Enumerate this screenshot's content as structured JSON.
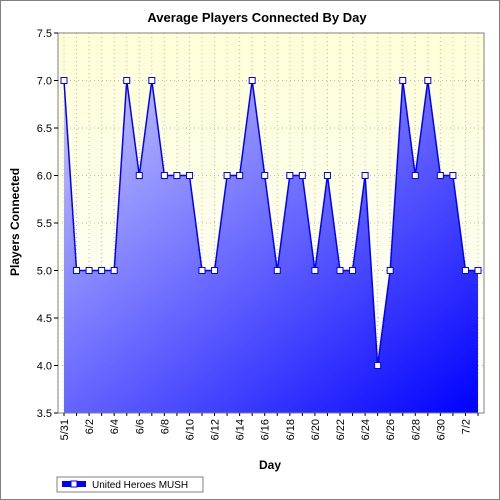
{
  "chart_data": {
    "type": "area",
    "title": "Average Players Connected By Day",
    "xlabel": "Day",
    "ylabel": "Players Connected",
    "ylim": [
      3.5,
      7.5
    ],
    "yticks": [
      "3.5",
      "4.0",
      "4.5",
      "5.0",
      "5.5",
      "6.0",
      "6.5",
      "7.0",
      "7.5"
    ],
    "x": [
      "5/31",
      "6/1",
      "6/2",
      "6/3",
      "6/4",
      "6/5",
      "6/6",
      "6/7",
      "6/8",
      "6/9",
      "6/10",
      "6/11",
      "6/12",
      "6/13",
      "6/14",
      "6/15",
      "6/16",
      "6/17",
      "6/18",
      "6/19",
      "6/20",
      "6/21",
      "6/22",
      "6/23",
      "6/24",
      "6/25",
      "6/26",
      "6/27",
      "6/28",
      "6/29",
      "6/30",
      "7/1",
      "7/2",
      "7/3"
    ],
    "xtick_labels": [
      "5/31",
      "6/2",
      "6/4",
      "6/6",
      "6/8",
      "6/10",
      "6/12",
      "6/14",
      "6/16",
      "6/18",
      "6/20",
      "6/22",
      "6/24",
      "6/26",
      "6/28",
      "6/30",
      "7/2"
    ],
    "series": [
      {
        "name": "United Heroes MUSH",
        "values": [
          7.0,
          5.0,
          5.0,
          5.0,
          5.0,
          7.0,
          6.0,
          7.0,
          6.0,
          6.0,
          6.0,
          5.0,
          5.0,
          6.0,
          6.0,
          7.0,
          6.0,
          5.0,
          6.0,
          6.0,
          5.0,
          6.0,
          5.0,
          5.0,
          6.0,
          4.0,
          5.0,
          7.0,
          6.0,
          7.0,
          6.0,
          6.0,
          5.0,
          5.0
        ]
      }
    ],
    "grid": true,
    "legend": "bottom-left",
    "colors": {
      "plot_bg_top": "#ffffd8",
      "plot_bg_bottom": "#ffffff",
      "area_light": "#c8c8ff",
      "area_dark": "#0000ff",
      "line": "#0000ff",
      "marker_fill": "#ffffff",
      "grid": "#bdbd9a"
    }
  }
}
